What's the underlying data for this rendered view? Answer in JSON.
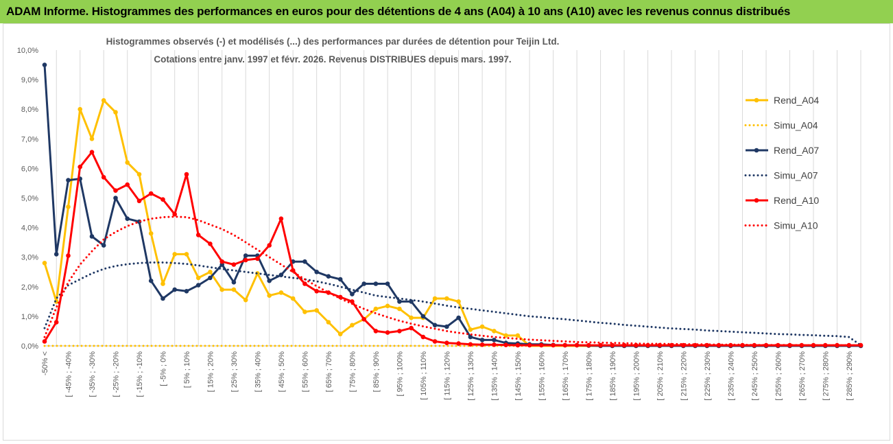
{
  "header": {
    "title": "ADAM Informe. Histogrammes des performances en euros pour des détentions de 4 ans (A04) à 10 ans (A10) avec les revenus connus distribués"
  },
  "chart_data": {
    "type": "line",
    "title_lines": [
      "Histogrammes observés (-) et modélisés (...) des performances par durées de détention pour Teijin Ltd.",
      "Cotations entre janv. 1997 et févr. 2026. Revenus DISTRIBUES depuis mars. 1997."
    ],
    "ylim": [
      0,
      10
    ],
    "y_ticks": [
      "0,0%",
      "1,0%",
      "2,0%",
      "3,0%",
      "4,0%",
      "5,0%",
      "6,0%",
      "7,0%",
      "8,0%",
      "9,0%",
      "10,0%"
    ],
    "x_labels": [
      "-50% <",
      "[ -45% ; -40%",
      "[ -35% ; -30%",
      "[ -25% ; -20%",
      "[ -15% ; -10%",
      "[ -5% ; 0%",
      "[ 5% ; 10%",
      "[ 15% ; 20%",
      "[ 25% ; 30%",
      "[ 35% ; 40%",
      "[ 45% ; 50%",
      "[ 55% ; 60%",
      "[ 65% ; 70%",
      "[ 75% ; 80%",
      "[ 85% ; 90%",
      "[ 95% ; 100%",
      "[ 105% ; 110%",
      "[ 115% ; 120%",
      "[ 125% ; 130%",
      "[ 135% ; 140%",
      "[ 145% ; 150%",
      "[ 155% ; 160%",
      "[ 165% ; 170%",
      "[ 175% ; 180%",
      "[ 185% ; 190%",
      "[ 195% ; 200%",
      "[ 205% ; 210%",
      "[ 215% ; 220%",
      "[ 225% ; 230%",
      "[ 235% ; 240%",
      "[ 245% ; 250%",
      "[ 255% ; 260%",
      "[ 265% ; 270%",
      "[ 275% ; 280%",
      "[ 285% ; 290%"
    ],
    "x_count": 70,
    "series": [
      {
        "name": "Rend_A04",
        "style": "solid",
        "color": "#ffc000",
        "values": [
          2.8,
          1.5,
          4.7,
          8.0,
          7.0,
          8.3,
          7.9,
          6.2,
          5.8,
          3.8,
          2.1,
          3.1,
          3.1,
          2.3,
          2.5,
          1.9,
          1.9,
          1.55,
          2.45,
          1.7,
          1.8,
          1.6,
          1.15,
          1.2,
          0.8,
          0.4,
          0.7,
          0.9,
          1.25,
          1.35,
          1.25,
          0.95,
          0.95,
          1.6,
          1.6,
          1.5,
          0.55,
          0.65,
          0.5,
          0.35,
          0.35,
          0,
          0,
          0,
          0,
          0,
          0,
          0,
          0,
          0,
          0,
          0,
          0,
          0,
          0,
          0,
          0,
          0,
          0,
          0,
          0,
          0,
          0,
          0,
          0,
          0,
          0,
          0,
          0,
          0
        ]
      },
      {
        "name": "Simu_A04",
        "style": "dotted",
        "color": "#ffc000",
        "values": [
          0,
          0,
          0,
          0,
          0,
          0,
          0,
          0,
          0,
          0,
          0,
          0,
          0,
          0,
          0,
          0,
          0,
          0,
          0,
          0,
          0,
          0,
          0,
          0,
          0,
          0,
          0,
          0,
          0,
          0,
          0,
          0,
          0,
          0,
          0,
          0,
          0,
          0,
          0,
          0,
          0,
          0,
          0,
          0,
          0,
          0,
          0,
          0,
          0,
          0,
          0,
          0,
          0,
          0,
          0,
          0,
          0,
          0,
          0,
          0,
          0,
          0,
          0,
          0,
          0,
          0,
          0,
          0,
          0,
          0
        ]
      },
      {
        "name": "Rend_A07",
        "style": "solid",
        "color": "#1f3864",
        "values": [
          9.5,
          3.1,
          5.6,
          5.65,
          3.7,
          3.4,
          5.0,
          4.3,
          4.2,
          2.2,
          1.6,
          1.9,
          1.85,
          2.05,
          2.3,
          2.75,
          2.15,
          3.05,
          3.05,
          2.2,
          2.4,
          2.85,
          2.85,
          2.5,
          2.35,
          2.25,
          1.75,
          2.1,
          2.1,
          2.1,
          1.5,
          1.5,
          1.0,
          0.7,
          0.65,
          0.95,
          0.3,
          0.2,
          0.2,
          0.1,
          0.08,
          0.05,
          0.05,
          0.03,
          0.02,
          0.02,
          0.01,
          0,
          0,
          0,
          0,
          0,
          0,
          0,
          0,
          0,
          0,
          0,
          0,
          0,
          0,
          0,
          0,
          0,
          0,
          0,
          0,
          0,
          0,
          0
        ]
      },
      {
        "name": "Simu_A07",
        "style": "dotted",
        "color": "#1f3864",
        "values": [
          0.6,
          1.6,
          2.05,
          2.25,
          2.45,
          2.6,
          2.7,
          2.76,
          2.8,
          2.82,
          2.82,
          2.8,
          2.77,
          2.72,
          2.66,
          2.6,
          2.55,
          2.5,
          2.45,
          2.4,
          2.35,
          2.3,
          2.25,
          2.18,
          2.1,
          2.0,
          1.9,
          1.8,
          1.7,
          1.65,
          1.6,
          1.55,
          1.5,
          1.43,
          1.36,
          1.3,
          1.25,
          1.2,
          1.15,
          1.1,
          1.05,
          1.0,
          0.97,
          0.93,
          0.9,
          0.86,
          0.82,
          0.78,
          0.75,
          0.71,
          0.68,
          0.65,
          0.62,
          0.59,
          0.57,
          0.55,
          0.52,
          0.5,
          0.48,
          0.46,
          0.44,
          0.42,
          0.4,
          0.39,
          0.37,
          0.36,
          0.34,
          0.33,
          0.3,
          0.02
        ]
      },
      {
        "name": "Rend_A10",
        "style": "solid",
        "color": "#ff0000",
        "values": [
          0.15,
          0.8,
          3.05,
          6.05,
          6.55,
          5.7,
          5.25,
          5.45,
          4.9,
          5.15,
          4.95,
          4.45,
          5.8,
          3.75,
          3.45,
          2.85,
          2.75,
          2.9,
          2.95,
          3.4,
          4.3,
          2.55,
          2.1,
          1.85,
          1.8,
          1.65,
          1.5,
          0.9,
          0.5,
          0.45,
          0.5,
          0.6,
          0.3,
          0.15,
          0.1,
          0.08,
          0.05,
          0.04,
          0.04,
          0.03,
          0.02,
          0.02,
          0.02,
          0.02,
          0.02,
          0.02,
          0.02,
          0.02,
          0.02,
          0.02,
          0.02,
          0.02,
          0.02,
          0.02,
          0.02,
          0.02,
          0.02,
          0.02,
          0.02,
          0.02,
          0.02,
          0.02,
          0.02,
          0.02,
          0.02,
          0.02,
          0.02,
          0.02,
          0.02,
          0.02
        ]
      },
      {
        "name": "Simu_A10",
        "style": "dotted",
        "color": "#ff0000",
        "values": [
          0.3,
          1.3,
          2.15,
          2.75,
          3.2,
          3.6,
          3.85,
          4.05,
          4.2,
          4.3,
          4.35,
          4.37,
          4.35,
          4.25,
          4.1,
          3.95,
          3.75,
          3.5,
          3.25,
          3.0,
          2.75,
          2.5,
          2.25,
          2.02,
          1.8,
          1.6,
          1.42,
          1.25,
          1.1,
          0.97,
          0.85,
          0.75,
          0.66,
          0.58,
          0.5,
          0.44,
          0.39,
          0.34,
          0.3,
          0.27,
          0.24,
          0.21,
          0.19,
          0.17,
          0.15,
          0.13,
          0.12,
          0.11,
          0.1,
          0.09,
          0.08,
          0.07,
          0.07,
          0.06,
          0.06,
          0.05,
          0.05,
          0.04,
          0.04,
          0.04,
          0.03,
          0.03,
          0.03,
          0.03,
          0.02,
          0.02,
          0.02,
          0.02,
          0.02,
          0.02
        ]
      }
    ],
    "grid": true,
    "legend_position": "right"
  }
}
